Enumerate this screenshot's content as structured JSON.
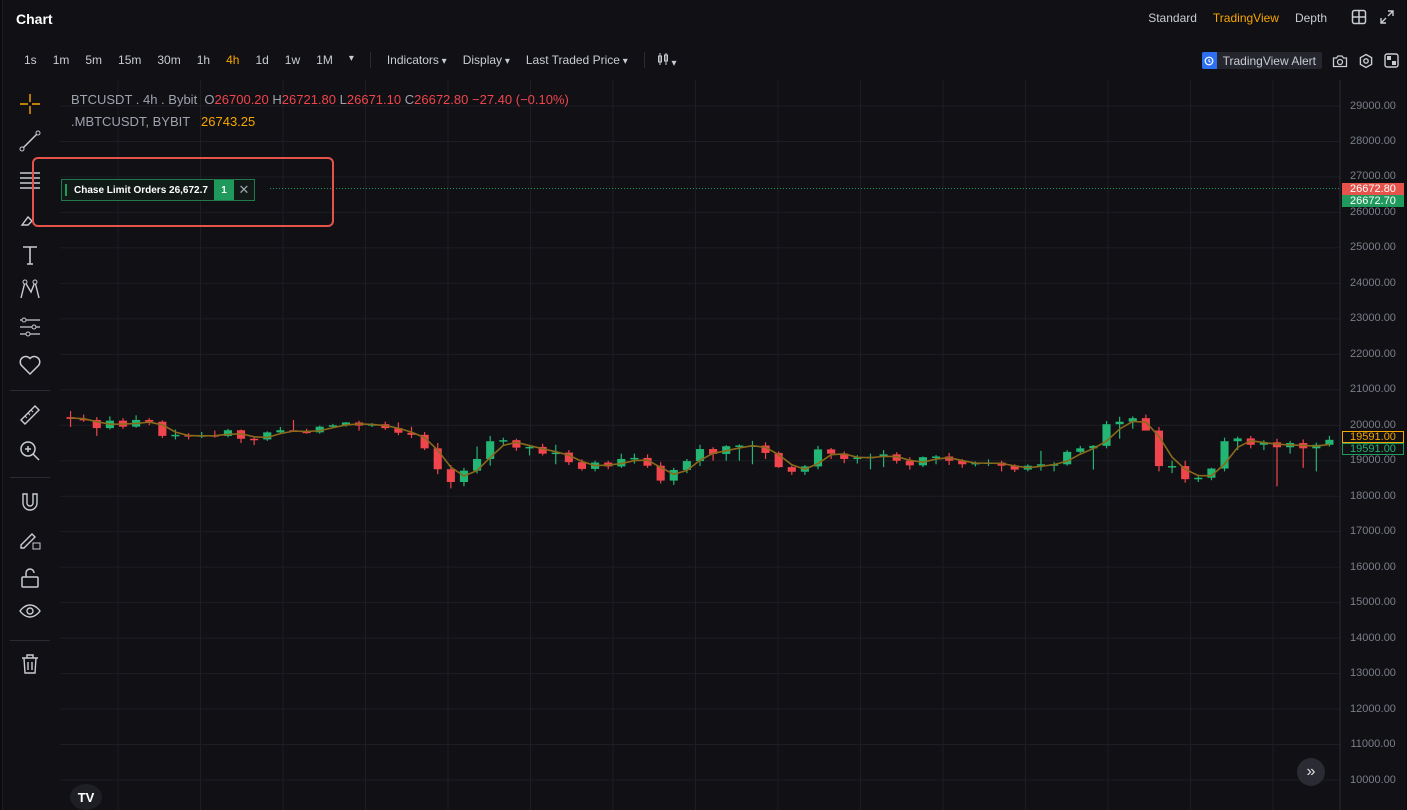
{
  "header": {
    "title": "Chart",
    "views": [
      "Standard",
      "TradingView",
      "Depth"
    ],
    "active_view": "TradingView"
  },
  "toolbar": {
    "timeframes": [
      "1s",
      "1m",
      "5m",
      "15m",
      "30m",
      "1h",
      "4h",
      "1d",
      "1w",
      "1M"
    ],
    "active_timeframe": "4h",
    "indicators_label": "Indicators",
    "display_label": "Display",
    "price_type_label": "Last Traded Price",
    "tv_alert_label": "TradingView Alert"
  },
  "legend": {
    "symbol": "BTCUSDT . 4h . Bybit",
    "o_label": "O",
    "open": "26700.20",
    "h_label": "H",
    "high": "26721.80",
    "l_label": "L",
    "low": "26671.10",
    "c_label": "C",
    "close": "26672.80",
    "change": "−27.40 (−0.10%)",
    "mark_symbol": ".MBTCUSDT, BYBIT",
    "mark_price": "26743.25"
  },
  "chase_order": {
    "label": "Chase Limit Orders 26,672.7",
    "count": "1"
  },
  "price_axis": {
    "ticks": [
      "29000.00",
      "28000.00",
      "27000.00",
      "26000.00",
      "25000.00",
      "24000.00",
      "23000.00",
      "22000.00",
      "21000.00",
      "20000.00",
      "19000.00",
      "18000.00",
      "17000.00",
      "16000.00",
      "15000.00",
      "14000.00",
      "13000.00",
      "12000.00",
      "11000.00",
      "10000.00"
    ],
    "last_price_label": "26672.80",
    "bid_price_label": "26672.70",
    "ma_price_label": "19591.00",
    "close_price_label": "19591.00"
  },
  "colors": {
    "up": "#22b573",
    "down": "#f0454c",
    "accent": "#f7a600",
    "ma": "#8a6a1a",
    "highlight": "#e5534b"
  },
  "chart_data": {
    "type": "candlestick",
    "ylim": [
      10000,
      29000
    ],
    "ohlc": [
      [
        20230,
        20400,
        19950,
        20180
      ],
      [
        20180,
        20300,
        20100,
        20150
      ],
      [
        20150,
        20230,
        19700,
        19920
      ],
      [
        19920,
        20250,
        19880,
        20130
      ],
      [
        20130,
        20200,
        19900,
        19960
      ],
      [
        19960,
        20280,
        19930,
        20150
      ],
      [
        20150,
        20200,
        20000,
        20100
      ],
      [
        20100,
        20140,
        19640,
        19700
      ],
      [
        19700,
        19880,
        19600,
        19730
      ],
      [
        19730,
        19780,
        19600,
        19680
      ],
      [
        19680,
        19810,
        19640,
        19720
      ],
      [
        19720,
        19850,
        19650,
        19700
      ],
      [
        19700,
        19900,
        19660,
        19860
      ],
      [
        19860,
        19880,
        19500,
        19620
      ],
      [
        19620,
        19680,
        19440,
        19600
      ],
      [
        19600,
        19830,
        19560,
        19800
      ],
      [
        19800,
        19950,
        19760,
        19860
      ],
      [
        19860,
        20150,
        19820,
        19820
      ],
      [
        19820,
        19900,
        19760,
        19800
      ],
      [
        19800,
        19990,
        19760,
        19960
      ],
      [
        19960,
        20040,
        19950,
        20000
      ],
      [
        20000,
        20090,
        19960,
        20080
      ],
      [
        20080,
        20130,
        19850,
        19990
      ],
      [
        19990,
        20060,
        19950,
        20030
      ],
      [
        20030,
        20100,
        19870,
        19920
      ],
      [
        19920,
        20080,
        19720,
        19790
      ],
      [
        19790,
        19960,
        19640,
        19730
      ],
      [
        19730,
        19810,
        19300,
        19350
      ],
      [
        19350,
        19500,
        18620,
        18760
      ],
      [
        18760,
        18880,
        18220,
        18400
      ],
      [
        18400,
        18800,
        18280,
        18720
      ],
      [
        18720,
        19400,
        18640,
        19050
      ],
      [
        19050,
        19700,
        18860,
        19550
      ],
      [
        19550,
        19650,
        19450,
        19580
      ],
      [
        19580,
        19620,
        19280,
        19370
      ],
      [
        19370,
        19420,
        19150,
        19390
      ],
      [
        19390,
        19480,
        19150,
        19200
      ],
      [
        19200,
        19450,
        18900,
        19230
      ],
      [
        19230,
        19300,
        18880,
        18960
      ],
      [
        18960,
        19040,
        18720,
        18770
      ],
      [
        18770,
        19000,
        18700,
        18950
      ],
      [
        18950,
        19000,
        18760,
        18840
      ],
      [
        18840,
        19200,
        18800,
        19050
      ],
      [
        19050,
        19200,
        18920,
        19080
      ],
      [
        19080,
        19180,
        18800,
        18860
      ],
      [
        18860,
        18960,
        18360,
        18440
      ],
      [
        18440,
        18800,
        18320,
        18740
      ],
      [
        18740,
        19050,
        18650,
        18990
      ],
      [
        18990,
        19450,
        18850,
        19330
      ],
      [
        19330,
        19380,
        19000,
        19190
      ],
      [
        19190,
        19440,
        19000,
        19410
      ],
      [
        19410,
        19460,
        19000,
        19430
      ],
      [
        19430,
        19560,
        18900,
        19430
      ],
      [
        19430,
        19520,
        19050,
        19220
      ],
      [
        19220,
        19260,
        18800,
        18820
      ],
      [
        18820,
        18860,
        18600,
        18690
      ],
      [
        18690,
        18880,
        18600,
        18840
      ],
      [
        18840,
        19420,
        18760,
        19320
      ],
      [
        19320,
        19360,
        19050,
        19200
      ],
      [
        19200,
        19260,
        18930,
        19050
      ],
      [
        19050,
        19160,
        18920,
        19090
      ],
      [
        19090,
        19200,
        18760,
        19110
      ],
      [
        19110,
        19300,
        18820,
        19180
      ],
      [
        19180,
        19240,
        18920,
        19000
      ],
      [
        19000,
        19100,
        18750,
        18870
      ],
      [
        18870,
        19120,
        18820,
        19100
      ],
      [
        19100,
        19160,
        18900,
        19120
      ],
      [
        19120,
        19220,
        18880,
        19000
      ],
      [
        19000,
        19050,
        18800,
        18900
      ],
      [
        18900,
        18980,
        18840,
        18940
      ],
      [
        18940,
        19040,
        18850,
        18950
      ],
      [
        18950,
        19000,
        18700,
        18860
      ],
      [
        18860,
        18900,
        18680,
        18750
      ],
      [
        18750,
        18900,
        18700,
        18860
      ],
      [
        18860,
        19280,
        18720,
        18900
      ],
      [
        18900,
        18960,
        18700,
        18900
      ],
      [
        18900,
        19300,
        18860,
        19250
      ],
      [
        19250,
        19420,
        19180,
        19350
      ],
      [
        19350,
        19440,
        18750,
        19420
      ],
      [
        19420,
        20120,
        19350,
        20030
      ],
      [
        20030,
        20240,
        19620,
        20100
      ],
      [
        20100,
        20250,
        19900,
        20200
      ],
      [
        20200,
        20300,
        19920,
        19850
      ],
      [
        19850,
        19950,
        18700,
        18850
      ],
      [
        18850,
        19000,
        18650,
        18850
      ],
      [
        18850,
        19000,
        18380,
        18480
      ],
      [
        18480,
        18600,
        18400,
        18520
      ],
      [
        18520,
        18800,
        18450,
        18780
      ],
      [
        18780,
        19650,
        18700,
        19550
      ],
      [
        19550,
        19680,
        19300,
        19630
      ],
      [
        19630,
        19700,
        19350,
        19450
      ],
      [
        19450,
        19580,
        19300,
        19520
      ],
      [
        19520,
        19620,
        18280,
        19380
      ],
      [
        19380,
        19560,
        19200,
        19500
      ],
      [
        19500,
        19600,
        18800,
        19350
      ],
      [
        19350,
        19510,
        18700,
        19450
      ],
      [
        19450,
        19700,
        19400,
        19590
      ]
    ]
  }
}
